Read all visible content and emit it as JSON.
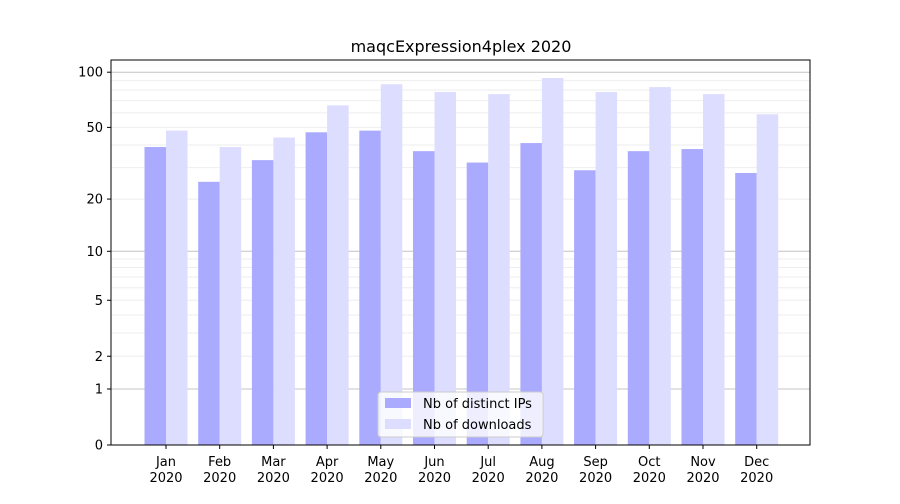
{
  "chart_data": {
    "type": "bar",
    "title": "maqcExpression4plex 2020",
    "xlabel": "",
    "ylabel": "",
    "y_scale": "log(1+y)",
    "ylim": [
      0,
      117
    ],
    "y_ticks": [
      0,
      1,
      2,
      5,
      10,
      20,
      50,
      100
    ],
    "grid": true,
    "legend_position": "bottom-center",
    "categories": [
      "Jan\n2020",
      "Feb\n2020",
      "Mar\n2020",
      "Apr\n2020",
      "May\n2020",
      "Jun\n2020",
      "Jul\n2020",
      "Aug\n2020",
      "Sep\n2020",
      "Oct\n2020",
      "Nov\n2020",
      "Dec\n2020"
    ],
    "series": [
      {
        "name": "Nb of distinct IPs",
        "color": "#aaaaff",
        "values": [
          39,
          25,
          33,
          47,
          48,
          37,
          32,
          41,
          29,
          37,
          38,
          28
        ]
      },
      {
        "name": "Nb of downloads",
        "color": "#ddddff",
        "values": [
          48,
          39,
          44,
          66,
          86,
          78,
          76,
          93,
          78,
          83,
          76,
          59
        ]
      }
    ]
  }
}
